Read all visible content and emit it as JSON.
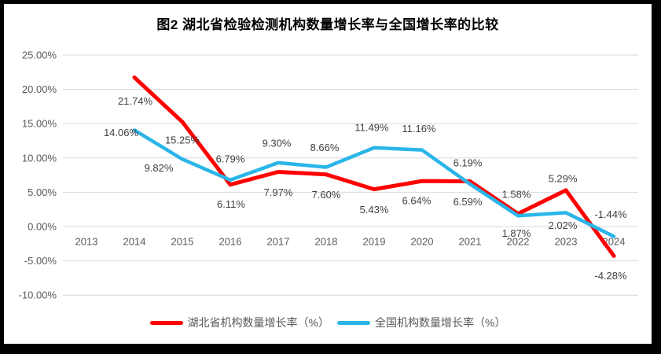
{
  "chart_data": {
    "type": "line",
    "title": "图2  湖北省检验检测机构数量增长率与全国增长率的比较",
    "categories": [
      "2013",
      "2014",
      "2015",
      "2016",
      "2017",
      "2018",
      "2019",
      "2020",
      "2021",
      "2022",
      "2023",
      "2024"
    ],
    "series": [
      {
        "name": "湖北省机构数量增长率（%）",
        "color": "#FE0000",
        "values": [
          null,
          21.74,
          15.25,
          6.11,
          7.97,
          7.6,
          5.43,
          6.64,
          6.59,
          1.87,
          5.29,
          -4.28
        ],
        "data_labels": [
          "",
          "21.74%",
          "15.25%",
          "6.11%",
          "7.97%",
          "7.60%",
          "5.43%",
          "6.64%",
          "6.59%",
          "1.87%",
          "5.29%",
          "-4.28%"
        ]
      },
      {
        "name": "全国机构数量增长率（%）",
        "color": "#2AB5E8",
        "values": [
          null,
          14.06,
          9.82,
          6.79,
          9.3,
          8.66,
          11.49,
          11.16,
          6.19,
          1.58,
          2.02,
          -1.44
        ],
        "data_labels": [
          "",
          "14.06%",
          "9.82%",
          "6.79%",
          "9.30%",
          "8.66%",
          "11.49%",
          "11.16%",
          "6.19%",
          "1.58%",
          "2.02%",
          "-1.44%"
        ]
      }
    ],
    "y_axis": {
      "tick_labels": [
        "25.00%",
        "20.00%",
        "15.00%",
        "10.00%",
        "5.00%",
        "0.00%",
        "-5.00%",
        "-10.00%"
      ],
      "tick_values": [
        25,
        20,
        15,
        10,
        5,
        0,
        -5,
        -10
      ],
      "ylim": [
        -10,
        25
      ]
    },
    "grid": true,
    "grid_color": "#D9D9D9",
    "axis_text_color": "#595959",
    "data_label_color": "#3F3F3F",
    "legend_position": "bottom"
  }
}
